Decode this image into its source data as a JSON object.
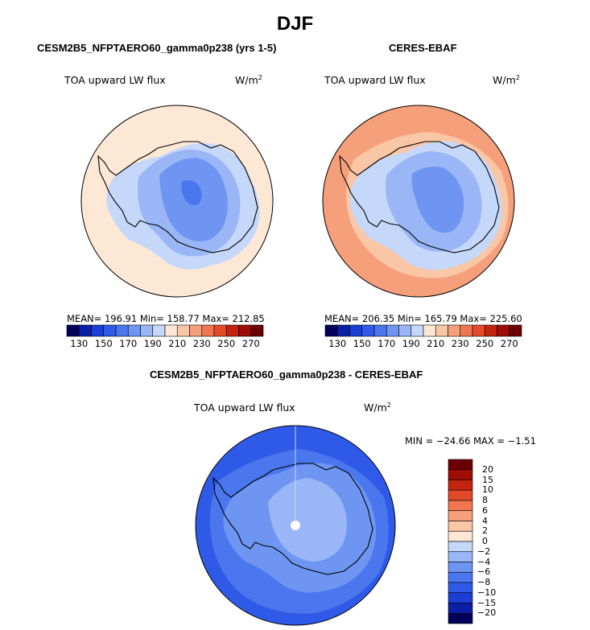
{
  "title": "DJF",
  "panels": [
    {
      "id": "model",
      "title": "CESM2B5_NFPTAERO60_gamma0p238 (yrs 1-5)",
      "variable": "TOA upward LW flux",
      "units_base": "W/m",
      "units_exp": "2",
      "stats": "MEAN=  196.91   Min=  158.77   Max=  212.85"
    },
    {
      "id": "obs",
      "title": "CERES-EBAF",
      "variable": "TOA upward LW flux",
      "units_base": "W/m",
      "units_exp": "2",
      "stats": "MEAN=  206.35   Min=  165.79   Max=  225.60"
    },
    {
      "id": "diff",
      "title": "CESM2B5_NFPTAERO60_gamma0p238 - CERES-EBAF",
      "variable": "TOA upward LW flux",
      "units_base": "W/m",
      "units_exp": "2",
      "stats": "MIN = −24.66  MAX =   −1.51"
    }
  ],
  "chart_data": [
    {
      "type": "heatmap",
      "projection": "south polar stereographic",
      "title": "CESM2B5_NFPTAERO60_gamma0p238 (yrs 1-5)",
      "variable": "TOA upward LW flux",
      "units": "W/m^2",
      "mean": 196.91,
      "min": 158.77,
      "max": 212.85,
      "colorbar_levels": [
        130,
        140,
        150,
        160,
        170,
        180,
        190,
        200,
        210,
        220,
        230,
        240,
        250,
        260,
        270
      ],
      "colorbar_tick_labels": [
        "130",
        "150",
        "170",
        "190",
        "210",
        "230",
        "250",
        "270"
      ],
      "colorbar_colors": [
        "#00005a",
        "#0b1fa6",
        "#1a3ed6",
        "#2f5ae8",
        "#4a76ee",
        "#6f95f3",
        "#9ab6f6",
        "#c6d8fa",
        "#fde8d6",
        "#f9c6a6",
        "#f5a07a",
        "#f07650",
        "#e24a2a",
        "#c22410",
        "#9e0c06",
        "#6b0002"
      ],
      "region_levels": {
        "ocean": 205,
        "ice_margin": 195,
        "interior_high": 180,
        "interior_core": 170,
        "dome": 160
      }
    },
    {
      "type": "heatmap",
      "projection": "south polar stereographic",
      "title": "CERES-EBAF",
      "variable": "TOA upward LW flux",
      "units": "W/m^2",
      "mean": 206.35,
      "min": 165.79,
      "max": 225.6,
      "colorbar_levels": [
        130,
        140,
        150,
        160,
        170,
        180,
        190,
        200,
        210,
        220,
        230,
        240,
        250,
        260,
        270
      ],
      "colorbar_tick_labels": [
        "130",
        "150",
        "170",
        "190",
        "210",
        "230",
        "250",
        "270"
      ],
      "region_levels": {
        "ocean_outer": 222,
        "ocean": 215,
        "ice_margin": 205,
        "interior_high": 190,
        "interior_core": 180
      }
    },
    {
      "type": "heatmap",
      "projection": "south polar stereographic",
      "title": "CESM2B5_NFPTAERO60_gamma0p238 - CERES-EBAF",
      "variable": "TOA upward LW flux",
      "units": "W/m^2",
      "min": -24.66,
      "max": -1.51,
      "colorbar_levels": [
        -20,
        -15,
        -10,
        -8,
        -6,
        -4,
        -2,
        0,
        2,
        4,
        6,
        8,
        10,
        15,
        20
      ],
      "colorbar_tick_labels": [
        "20",
        "15",
        "10",
        "8",
        "6",
        "4",
        "2",
        "0",
        "−2",
        "−4",
        "−6",
        "−8",
        "−10",
        "−15",
        "−20"
      ],
      "colorbar_colors_top_to_bottom": [
        "#6b0002",
        "#9e0c06",
        "#c22410",
        "#e24a2a",
        "#f07650",
        "#f5a07a",
        "#f9c6a6",
        "#fde8d6",
        "#c6d8fa",
        "#9ab6f6",
        "#6f95f3",
        "#4a76ee",
        "#2f5ae8",
        "#1a3ed6",
        "#0b1fa6",
        "#00005a"
      ],
      "region_levels": {
        "ocean": -11,
        "southern_ocean_band": -9,
        "continent": -7,
        "interior_light": -4
      }
    }
  ]
}
